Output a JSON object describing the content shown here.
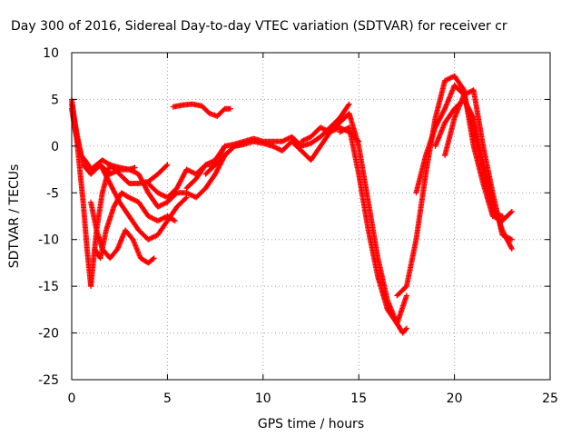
{
  "chart_data": {
    "type": "scatter",
    "title": "Day 300 of 2016, Sidereal Day-to-day VTEC variation (SDTVAR) for receiver cr",
    "xlabel": "GPS time / hours",
    "ylabel": "SDTVAR / TECUs",
    "xlim": [
      0,
      25
    ],
    "ylim": [
      -25,
      10
    ],
    "xticks": [
      0,
      5,
      10,
      15,
      20,
      25
    ],
    "yticks": [
      -25,
      -20,
      -15,
      -10,
      -5,
      0,
      5,
      10
    ],
    "grid": true,
    "marker": "plus",
    "color": "#ff0000",
    "series": [
      {
        "x": [
          0.0,
          0.2,
          0.4,
          0.6,
          0.8,
          1.0,
          1.1,
          1.3,
          1.6,
          2.0
        ],
        "y": [
          5.0,
          2.0,
          -2.0,
          -6.0,
          -11.0,
          -15.0,
          -13.0,
          -9.0,
          -5.0,
          -2.0
        ]
      },
      {
        "x": [
          0.0,
          0.3,
          0.6,
          1.0,
          1.5,
          2.0,
          2.5,
          3.0,
          3.3
        ],
        "y": [
          4.5,
          1.0,
          -2.0,
          -3.0,
          -2.0,
          -3.0,
          -2.5,
          -2.5,
          -2.3
        ]
      },
      {
        "x": [
          0.0,
          0.2,
          0.5,
          0.8,
          1.0,
          1.3,
          1.6,
          2.0,
          2.5,
          3.0,
          3.5,
          4.0,
          4.5,
          5.0
        ],
        "y": [
          4.0,
          1.5,
          -1.0,
          -1.8,
          -2.5,
          -2.0,
          -1.5,
          -2.0,
          -3.0,
          -4.0,
          -4.0,
          -3.8,
          -3.0,
          -2.0
        ]
      },
      {
        "x": [
          1.0,
          1.3,
          1.6,
          2.0,
          2.4,
          2.8,
          3.2,
          3.6,
          4.0,
          4.3
        ],
        "y": [
          -6.0,
          -9.0,
          -11.0,
          -12.0,
          -11.0,
          -9.0,
          -10.0,
          -12.0,
          -12.5,
          -12.0
        ]
      },
      {
        "x": [
          1.2,
          1.5,
          1.8,
          2.2,
          2.6,
          3.0,
          3.5,
          4.0,
          4.5,
          5.0,
          5.4
        ],
        "y": [
          -11.0,
          -12.0,
          -9.0,
          -6.5,
          -5.0,
          -5.5,
          -6.0,
          -7.5,
          -8.0,
          -7.5,
          -8.0
        ]
      },
      {
        "x": [
          1.5,
          2.0,
          2.5,
          3.0,
          3.5,
          4.0,
          4.5,
          5.0,
          5.5,
          6.0
        ],
        "y": [
          -2.0,
          -4.0,
          -6.0,
          -7.5,
          -9.0,
          -10.0,
          -9.5,
          -8.0,
          -6.5,
          -5.5
        ]
      },
      {
        "x": [
          5.3,
          5.8,
          6.3,
          6.8,
          7.2,
          7.6,
          8.0,
          8.3
        ],
        "y": [
          4.2,
          4.4,
          4.5,
          4.3,
          3.5,
          3.2,
          4.0,
          4.0
        ]
      },
      {
        "x": [
          2.0,
          2.5,
          3.0,
          3.5,
          4.0,
          4.5,
          5.0,
          5.5,
          6.0,
          6.5,
          7.0,
          7.5,
          8.0,
          8.5,
          9.0
        ],
        "y": [
          -2.0,
          -2.3,
          -2.5,
          -3.0,
          -5.0,
          -6.5,
          -6.0,
          -5.0,
          -5.0,
          -5.5,
          -4.5,
          -3.0,
          -1.0,
          0.0,
          0.2
        ]
      },
      {
        "x": [
          4.0,
          4.5,
          5.0,
          5.5,
          6.0,
          6.5,
          7.0,
          7.5,
          8.0
        ],
        "y": [
          -4.0,
          -5.0,
          -5.5,
          -4.5,
          -2.5,
          -3.0,
          -2.0,
          -2.0,
          0.0
        ]
      },
      {
        "x": [
          6.0,
          6.5,
          7.0,
          7.5,
          8.0,
          8.5,
          9.0,
          9.5,
          10.0,
          10.5,
          11.0,
          11.5,
          12.0,
          12.5,
          13.0,
          13.5,
          14.0,
          14.5
        ],
        "y": [
          -4.5,
          -3.5,
          -2.0,
          -1.5,
          0.0,
          0.2,
          0.5,
          0.8,
          0.5,
          0.5,
          0.5,
          1.0,
          0.0,
          0.3,
          1.0,
          2.0,
          3.0,
          4.5
        ]
      },
      {
        "x": [
          7.0,
          7.5,
          8.0,
          8.5,
          9.0,
          9.5,
          10.0,
          10.5,
          11.0,
          11.5,
          12.0,
          12.5,
          13.0,
          13.5,
          14.0,
          14.5,
          15.0
        ],
        "y": [
          -3.0,
          -2.0,
          -1.0,
          0.0,
          0.2,
          0.5,
          0.3,
          0.0,
          -0.5,
          0.5,
          -0.5,
          -1.5,
          0.0,
          1.5,
          2.0,
          1.5,
          0.5
        ]
      },
      {
        "x": [
          12.0,
          12.5,
          13.0,
          13.5,
          14.0,
          14.5,
          15.0,
          15.5,
          16.0,
          16.5,
          17.0,
          17.3,
          17.5
        ],
        "y": [
          0.5,
          1.0,
          2.0,
          1.5,
          2.5,
          3.5,
          0.0,
          -6.0,
          -12.0,
          -16.5,
          -19.0,
          -20.0,
          -19.5
        ]
      },
      {
        "x": [
          14.0,
          14.5,
          15.0,
          15.5,
          16.0,
          16.5,
          17.0,
          17.5
        ],
        "y": [
          1.5,
          2.0,
          -3.0,
          -9.0,
          -14.0,
          -17.5,
          -19.0,
          -16.0
        ]
      },
      {
        "x": [
          17.0,
          17.5,
          18.0,
          18.5,
          19.0,
          19.5,
          20.0,
          20.5,
          21.0,
          21.5,
          22.0,
          22.5,
          23.0
        ],
        "y": [
          -16.0,
          -15.0,
          -10.0,
          -3.0,
          3.0,
          7.0,
          7.5,
          6.0,
          0.0,
          -4.0,
          -7.5,
          -8.0,
          -7.0
        ]
      },
      {
        "x": [
          18.0,
          18.5,
          19.0,
          19.5,
          20.0,
          20.5,
          21.0,
          21.5,
          22.0,
          22.5
        ],
        "y": [
          -5.0,
          -1.0,
          2.0,
          4.0,
          6.5,
          5.5,
          1.5,
          -2.5,
          -7.0,
          -7.5
        ]
      },
      {
        "x": [
          19.0,
          19.5,
          20.0,
          20.5,
          21.0,
          21.5,
          22.0,
          22.5,
          23.0
        ],
        "y": [
          0.0,
          2.5,
          4.0,
          5.0,
          3.0,
          -2.0,
          -6.0,
          -9.0,
          -11.0
        ]
      },
      {
        "x": [
          19.5,
          20.0,
          20.5,
          21.0,
          21.5,
          22.0,
          22.5,
          23.0
        ],
        "y": [
          -1.0,
          3.0,
          5.5,
          6.0,
          0.0,
          -5.0,
          -9.5,
          -10.0
        ]
      }
    ]
  }
}
